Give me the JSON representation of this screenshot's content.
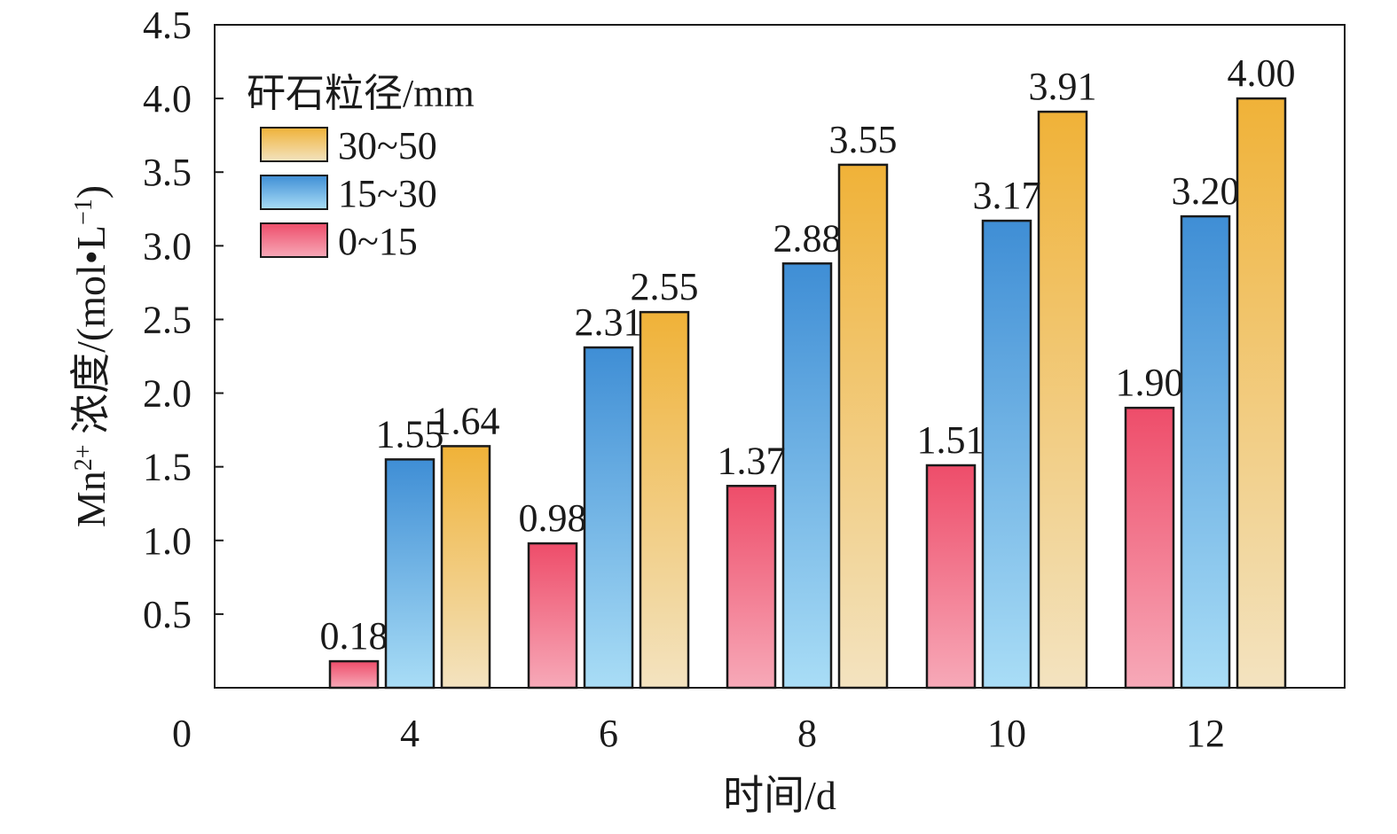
{
  "chart_data": {
    "type": "bar",
    "categories": [
      "4",
      "6",
      "8",
      "10",
      "12"
    ],
    "series": [
      {
        "name": "0~15",
        "values": [
          0.18,
          0.98,
          1.37,
          1.51,
          1.9
        ],
        "labels": [
          "0.18",
          "0.98",
          "1.37",
          "1.51",
          "1.90"
        ],
        "colors": [
          "#ee4d6a",
          "#f7a9b8"
        ]
      },
      {
        "name": "15~30",
        "values": [
          1.55,
          2.31,
          2.88,
          3.17,
          3.2
        ],
        "labels": [
          "1.55",
          "2.31",
          "2.88",
          "3.17",
          "3.20"
        ],
        "colors": [
          "#3f8ed5",
          "#a9ddf6"
        ]
      },
      {
        "name": "30~50",
        "values": [
          1.64,
          2.55,
          3.55,
          3.91,
          4.0
        ],
        "labels": [
          "1.64",
          "2.55",
          "3.55",
          "3.91",
          "4.00"
        ],
        "colors": [
          "#f0b238",
          "#f3e3c0"
        ]
      }
    ],
    "xlabel": "时间/d",
    "ylabel_main": "Mn",
    "ylabel_sup": "2+",
    "ylabel_rest": " 浓度/(mol•L",
    "ylabel_sup2": "−1",
    "ylabel_end": ")",
    "ylim": [
      0,
      4.5
    ],
    "yticks": [
      "0.5",
      "1.0",
      "1.5",
      "2.0",
      "2.5",
      "3.0",
      "3.5",
      "4.0",
      "4.5"
    ],
    "origin_label": "0",
    "legend_title": "矸石粒径/mm",
    "legend_order": [
      "30~50",
      "15~30",
      "0~15"
    ],
    "legend_position": "top-left",
    "grid": false
  }
}
